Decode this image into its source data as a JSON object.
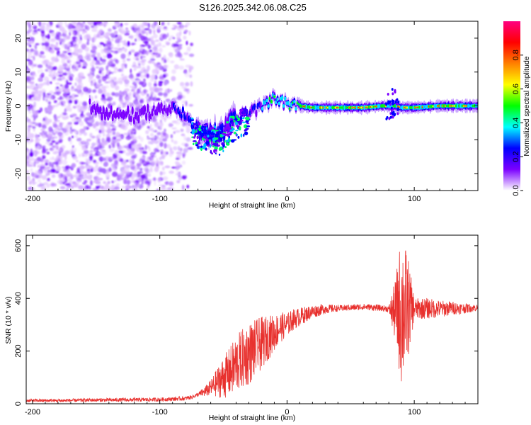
{
  "title": "S126.2025.342.06.08.C25",
  "chart_data": [
    {
      "type": "heatmap",
      "name": "spectrogram",
      "xlabel": "Height of straight line (km)",
      "ylabel": "Frequency (Hz)",
      "xlim": [
        -205,
        150
      ],
      "ylim": [
        -25,
        25
      ],
      "xticks": [
        -200,
        -100,
        0,
        100
      ],
      "yticks": [
        -20,
        -10,
        0,
        10,
        20
      ],
      "colorbar": {
        "label": "Normalized spectral amplitude",
        "range": [
          0,
          1
        ],
        "ticks": [
          0.0,
          0.2,
          0.4,
          0.6,
          0.8
        ],
        "colors": [
          "#ffffff",
          "#7b00ff",
          "#0000ff",
          "#00ffff",
          "#00ff00",
          "#ffff00",
          "#ff8000",
          "#ff0000",
          "#ff0080"
        ]
      },
      "line_trace": {
        "description": "frequency centre of the dominant signal track vs height",
        "x": [
          -150,
          -140,
          -130,
          -120,
          -110,
          -100,
          -95,
          -90,
          -85,
          -80,
          -75,
          -70,
          -65,
          -60,
          -55,
          -50,
          -45,
          -40,
          -35,
          -30,
          -25,
          -20,
          -15,
          -10,
          -5,
          0,
          5,
          10,
          20,
          40,
          60,
          75,
          80,
          85,
          90,
          100,
          120,
          150
        ],
        "y": [
          -2,
          -2,
          -2,
          -3,
          -2,
          -1,
          -1,
          -1,
          -2,
          -3,
          -5,
          -7,
          -7,
          -8,
          -9,
          -8,
          -5,
          -4,
          -3,
          -2,
          -1,
          0,
          1,
          2,
          1,
          1,
          0,
          0,
          -0.5,
          -0.5,
          -0.5,
          0,
          0,
          0,
          -0.5,
          -0.5,
          0,
          0
        ]
      }
    },
    {
      "type": "line",
      "name": "snr",
      "xlabel": "Height of straight line (km)",
      "ylabel": "SNR (10 * v/v)",
      "xlim": [
        -205,
        150
      ],
      "ylim": [
        0,
        640
      ],
      "xticks": [
        -200,
        -100,
        0,
        100
      ],
      "yticks": [
        0,
        200,
        400,
        600
      ],
      "series": [
        {
          "name": "SNR",
          "color": "#e8312e",
          "x": [
            -205,
            -180,
            -150,
            -120,
            -100,
            -90,
            -80,
            -75,
            -70,
            -65,
            -60,
            -55,
            -50,
            -45,
            -40,
            -35,
            -30,
            -25,
            -20,
            -15,
            -10,
            -5,
            0,
            5,
            10,
            15,
            20,
            25,
            30,
            40,
            50,
            60,
            70,
            80,
            85,
            90,
            95,
            100,
            110,
            120,
            130,
            140,
            150
          ],
          "values": [
            12,
            12,
            14,
            15,
            16,
            18,
            20,
            25,
            35,
            45,
            60,
            80,
            100,
            120,
            150,
            170,
            190,
            210,
            230,
            250,
            270,
            290,
            300,
            320,
            330,
            340,
            350,
            355,
            360,
            362,
            365,
            368,
            365,
            360,
            350,
            355,
            365,
            360,
            362,
            360,
            363,
            362,
            365
          ]
        }
      ],
      "noise_envelope": {
        "x": [
          -205,
          -70,
          -60,
          -50,
          -40,
          -30,
          -20,
          -10,
          0,
          20,
          40,
          60,
          80,
          85,
          90,
          95,
          100,
          110,
          150
        ],
        "amplitude": [
          6,
          8,
          30,
          80,
          110,
          120,
          100,
          70,
          45,
          25,
          12,
          12,
          12,
          120,
          300,
          200,
          40,
          40,
          12
        ]
      }
    }
  ]
}
